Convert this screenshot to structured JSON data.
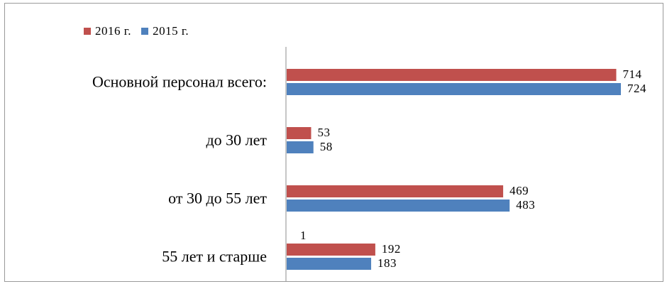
{
  "chart_data": {
    "type": "bar",
    "orientation": "horizontal",
    "categories": [
      "Основной персонал всего:",
      "до 30 лет",
      "от 30 до 55 лет",
      "55 лет и старше"
    ],
    "series": [
      {
        "name": "2016 г.",
        "color": "#c0504d",
        "values": [
          714,
          53,
          469,
          192
        ]
      },
      {
        "name": "2015 г.",
        "color": "#4f81bd",
        "values": [
          724,
          58,
          483,
          183
        ]
      }
    ],
    "annotations": [
      {
        "text": "1",
        "category": "55 лет и старше"
      }
    ],
    "xlim": [
      0,
      724
    ],
    "grid": false,
    "legend_position": "top-left"
  }
}
